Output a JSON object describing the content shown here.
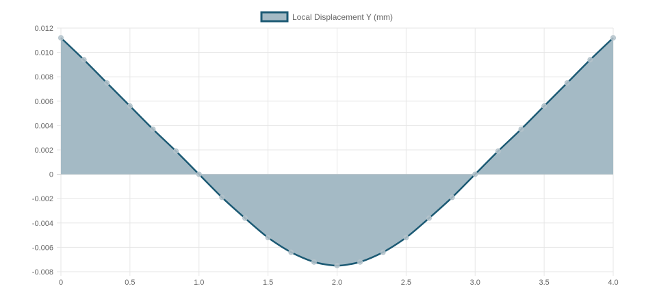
{
  "chart_data": {
    "type": "area",
    "legend": {
      "label": "Local Displacement Y (mm)",
      "position": "top"
    },
    "xlim": [
      0,
      4
    ],
    "ylim": [
      -0.008,
      0.012
    ],
    "x_ticks": [
      "0",
      "0.5",
      "1.0",
      "1.5",
      "2.0",
      "2.5",
      "3.0",
      "3.5",
      "4.0"
    ],
    "y_ticks": [
      "0.012",
      "0.010",
      "0.008",
      "0.006",
      "0.004",
      "0.002",
      "0",
      "-0.002",
      "-0.004",
      "-0.006",
      "-0.008"
    ],
    "grid": true,
    "series": [
      {
        "name": "Local Displacement Y (mm)",
        "x": [
          0,
          0.1667,
          0.3333,
          0.5,
          0.6667,
          0.8333,
          1.0,
          1.1667,
          1.3333,
          1.5,
          1.6667,
          1.8333,
          2.0,
          2.1667,
          2.3333,
          2.5,
          2.6667,
          2.8333,
          3.0,
          3.1667,
          3.3333,
          3.5,
          3.6667,
          3.8333,
          4.0
        ],
        "y": [
          0.0112,
          0.0094,
          0.0075,
          0.0056,
          0.0037,
          0.0019,
          0.0,
          -0.0019,
          -0.0036,
          -0.0052,
          -0.0064,
          -0.0072,
          -0.0075,
          -0.0072,
          -0.0064,
          -0.0052,
          -0.0036,
          -0.0019,
          0.0,
          0.0019,
          0.0037,
          0.0056,
          0.0075,
          0.0094,
          0.0112
        ]
      }
    ],
    "colors": {
      "line": "#1c5a74",
      "fill": "#a4bac5",
      "point": "#b4c3cb",
      "grid": "#e6e6e6",
      "zero_line": "#c8c8c8",
      "tick_text": "#666666"
    }
  }
}
